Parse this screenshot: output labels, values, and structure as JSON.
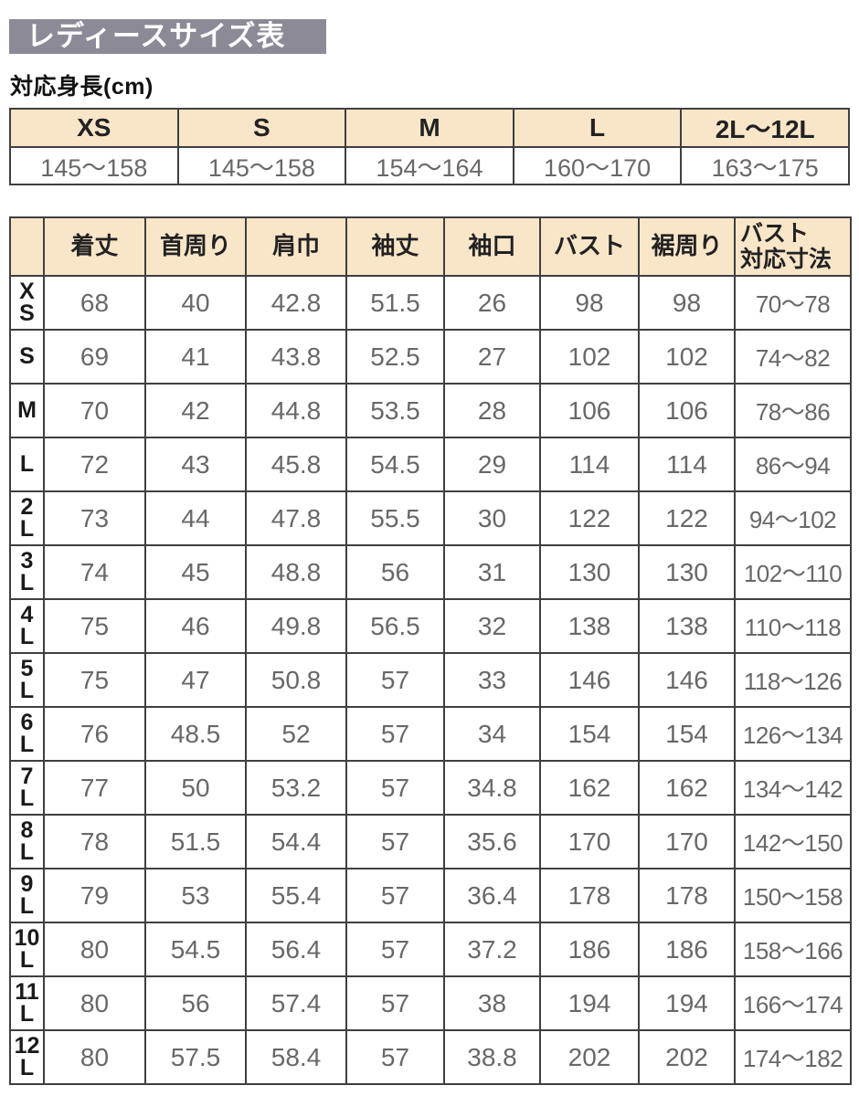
{
  "page": {
    "title": "レディースサイズ表",
    "height_label": "対応身長(cm)"
  },
  "colors": {
    "title_bg": "#8d8a98",
    "header_bg": "#f9e6c9",
    "border": "#3f3f3f",
    "value_text": "#686868",
    "heading_text": "#222222",
    "title_text": "#ffffff"
  },
  "height_table": {
    "columns": [
      "XS",
      "S",
      "M",
      "L",
      "2L〜12L"
    ],
    "values": [
      "145〜158",
      "145〜158",
      "154〜164",
      "160〜170",
      "163〜175"
    ]
  },
  "size_table": {
    "corner": "",
    "columns": [
      "着丈",
      "首周り",
      "肩巾",
      "袖丈",
      "袖口",
      "バスト",
      "裾周り",
      "バスト\n対応寸法"
    ],
    "rows": [
      {
        "label": "X\nS",
        "values": [
          "68",
          "40",
          "42.8",
          "51.5",
          "26",
          "98",
          "98",
          "70〜78"
        ]
      },
      {
        "label": "S",
        "values": [
          "69",
          "41",
          "43.8",
          "52.5",
          "27",
          "102",
          "102",
          "74〜82"
        ]
      },
      {
        "label": "M",
        "values": [
          "70",
          "42",
          "44.8",
          "53.5",
          "28",
          "106",
          "106",
          "78〜86"
        ]
      },
      {
        "label": "L",
        "values": [
          "72",
          "43",
          "45.8",
          "54.5",
          "29",
          "114",
          "114",
          "86〜94"
        ]
      },
      {
        "label": "2\nL",
        "values": [
          "73",
          "44",
          "47.8",
          "55.5",
          "30",
          "122",
          "122",
          "94〜102"
        ]
      },
      {
        "label": "3\nL",
        "values": [
          "74",
          "45",
          "48.8",
          "56",
          "31",
          "130",
          "130",
          "102〜110"
        ]
      },
      {
        "label": "4\nL",
        "values": [
          "75",
          "46",
          "49.8",
          "56.5",
          "32",
          "138",
          "138",
          "110〜118"
        ]
      },
      {
        "label": "5\nL",
        "values": [
          "75",
          "47",
          "50.8",
          "57",
          "33",
          "146",
          "146",
          "118〜126"
        ]
      },
      {
        "label": "6\nL",
        "values": [
          "76",
          "48.5",
          "52",
          "57",
          "34",
          "154",
          "154",
          "126〜134"
        ]
      },
      {
        "label": "7\nL",
        "values": [
          "77",
          "50",
          "53.2",
          "57",
          "34.8",
          "162",
          "162",
          "134〜142"
        ]
      },
      {
        "label": "8\nL",
        "values": [
          "78",
          "51.5",
          "54.4",
          "57",
          "35.6",
          "170",
          "170",
          "142〜150"
        ]
      },
      {
        "label": "9\nL",
        "values": [
          "79",
          "53",
          "55.4",
          "57",
          "36.4",
          "178",
          "178",
          "150〜158"
        ]
      },
      {
        "label": "10\nL",
        "values": [
          "80",
          "54.5",
          "56.4",
          "57",
          "37.2",
          "186",
          "186",
          "158〜166"
        ]
      },
      {
        "label": "11\nL",
        "values": [
          "80",
          "56",
          "57.4",
          "57",
          "38",
          "194",
          "194",
          "166〜174"
        ]
      },
      {
        "label": "12\nL",
        "values": [
          "80",
          "57.5",
          "58.4",
          "57",
          "38.8",
          "202",
          "202",
          "174〜182"
        ]
      }
    ]
  }
}
